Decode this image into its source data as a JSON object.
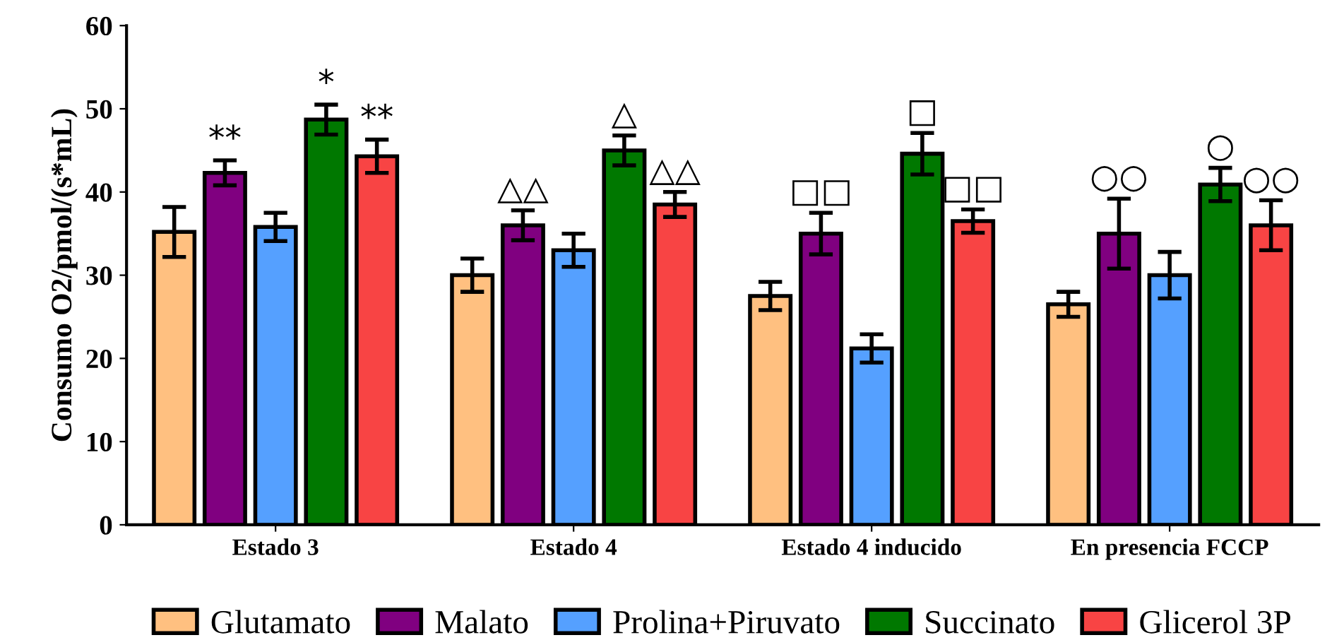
{
  "chart_data": {
    "type": "bar",
    "ylabel": "Consumo O2/pmol/(s*mL)",
    "categories": [
      "Estado 3",
      "Estado 4",
      "Estado 4 inducido",
      "En presencia FCCP"
    ],
    "series": [
      {
        "name": "Glutamato",
        "color": "#ffc080",
        "values": [
          35.2,
          30,
          27.5,
          26.5
        ],
        "errors": [
          3,
          2,
          1.7,
          1.5
        ]
      },
      {
        "name": "Malato",
        "color": "#800080",
        "values": [
          42.3,
          36,
          35,
          35
        ],
        "errors": [
          1.5,
          1.8,
          2.5,
          4.2
        ],
        "value_labels": [
          "**",
          "△△",
          "□□",
          "○○"
        ]
      },
      {
        "name": "Prolina+Piruvato",
        "color": "#55a0ff",
        "values": [
          35.8,
          33,
          21.2,
          30
        ],
        "errors": [
          1.7,
          2,
          1.7,
          2.8
        ]
      },
      {
        "name": "Succinato",
        "color": "#007800",
        "values": [
          48.7,
          45,
          44.6,
          40.9
        ],
        "errors": [
          1.8,
          1.8,
          2.5,
          2
        ],
        "value_labels": [
          "*",
          "△",
          "□",
          "○"
        ]
      },
      {
        "name": "Glicerol 3P",
        "color": "#f84444",
        "values": [
          44.3,
          38.5,
          36.5,
          36
        ],
        "errors": [
          2,
          1.5,
          1.4,
          3
        ],
        "value_labels": [
          "**",
          "△△",
          "□□",
          "○○"
        ]
      }
    ],
    "ylim": [
      0,
      60
    ],
    "yticks": [
      0,
      10,
      20,
      30,
      40,
      50,
      60
    ],
    "grid": false,
    "legend": "bottom"
  }
}
